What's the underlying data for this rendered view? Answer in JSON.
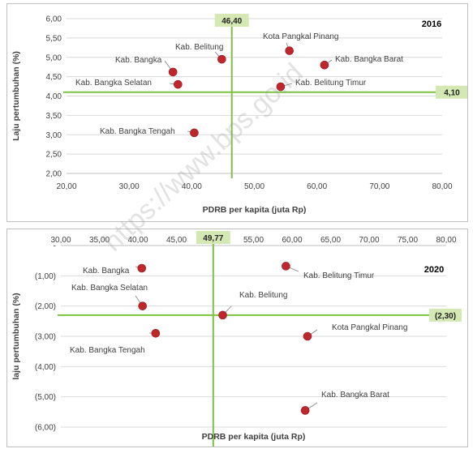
{
  "colors": {
    "point": "#c0272d",
    "ref_line": "#7cc242",
    "ref_box": "#d4e8b4",
    "grid": "#d9d9d9"
  },
  "watermark": "https://www.bps.go.id",
  "chart_data": [
    {
      "type": "scatter",
      "year_label": "2016",
      "xlabel": "PDRB per kapita (juta Rp)",
      "ylabel": "Laju pertumbuhan (%)",
      "xlim": [
        20,
        80
      ],
      "ylim": [
        2,
        6
      ],
      "x_ticks": [
        "20,00",
        "30,00",
        "40,00",
        "50,00",
        "60,00",
        "70,00",
        "80,00"
      ],
      "y_ticks": [
        "2,00",
        "2,50",
        "3,00",
        "3,50",
        "4,00",
        "4,50",
        "5,00",
        "5,50",
        "6,00"
      ],
      "ref_x": 46.4,
      "ref_x_label": "46,40",
      "ref_y": 4.1,
      "ref_y_label": "4,10",
      "points": [
        {
          "name": "Kab. Bangka",
          "x": 37.0,
          "y": 4.62
        },
        {
          "name": "Kab. Belitung",
          "x": 44.8,
          "y": 4.95
        },
        {
          "name": "Kota Pangkal Pinang",
          "x": 55.6,
          "y": 5.17
        },
        {
          "name": "Kab. Bangka Barat",
          "x": 61.2,
          "y": 4.8
        },
        {
          "name": "Kab. Bangka Selatan",
          "x": 37.8,
          "y": 4.3
        },
        {
          "name": "Kab. Belitung Timur",
          "x": 54.2,
          "y": 4.24
        },
        {
          "name": "Kab. Bangka Tengah",
          "x": 40.4,
          "y": 3.05
        }
      ]
    },
    {
      "type": "scatter",
      "year_label": "2020",
      "xlabel": "PDRB per kapita (juta Rp)",
      "ylabel": "laju pertumbuhan (%)",
      "xlim": [
        30,
        80
      ],
      "ylim": [
        -6,
        0
      ],
      "x_ticks": [
        "30,00",
        "35,00",
        "40,00",
        "45,00",
        "50,00",
        "55,00",
        "60,00",
        "65,00",
        "70,00",
        "75,00",
        "80,00"
      ],
      "y_ticks": [
        "-",
        "(1,00)",
        "(2,00)",
        "(3,00)",
        "(4,00)",
        "(5,00)",
        "(6,00)"
      ],
      "ref_x": 49.77,
      "ref_x_label": "49,77",
      "ref_y": -2.3,
      "ref_y_label": "(2,30)",
      "points": [
        {
          "name": "Kab. Bangka",
          "x": 40.5,
          "y": -0.75
        },
        {
          "name": "Kab. Belitung Timur",
          "x": 59.2,
          "y": -0.68
        },
        {
          "name": "Kab. Bangka Selatan",
          "x": 40.6,
          "y": -2.0
        },
        {
          "name": "Kab. Belitung",
          "x": 51.0,
          "y": -2.3
        },
        {
          "name": "Kab. Bangka Tengah",
          "x": 42.3,
          "y": -2.9
        },
        {
          "name": "Kota Pangkal Pinang",
          "x": 62.0,
          "y": -3.0
        },
        {
          "name": "Kab. Bangka Barat",
          "x": 61.7,
          "y": -5.45
        }
      ]
    }
  ]
}
